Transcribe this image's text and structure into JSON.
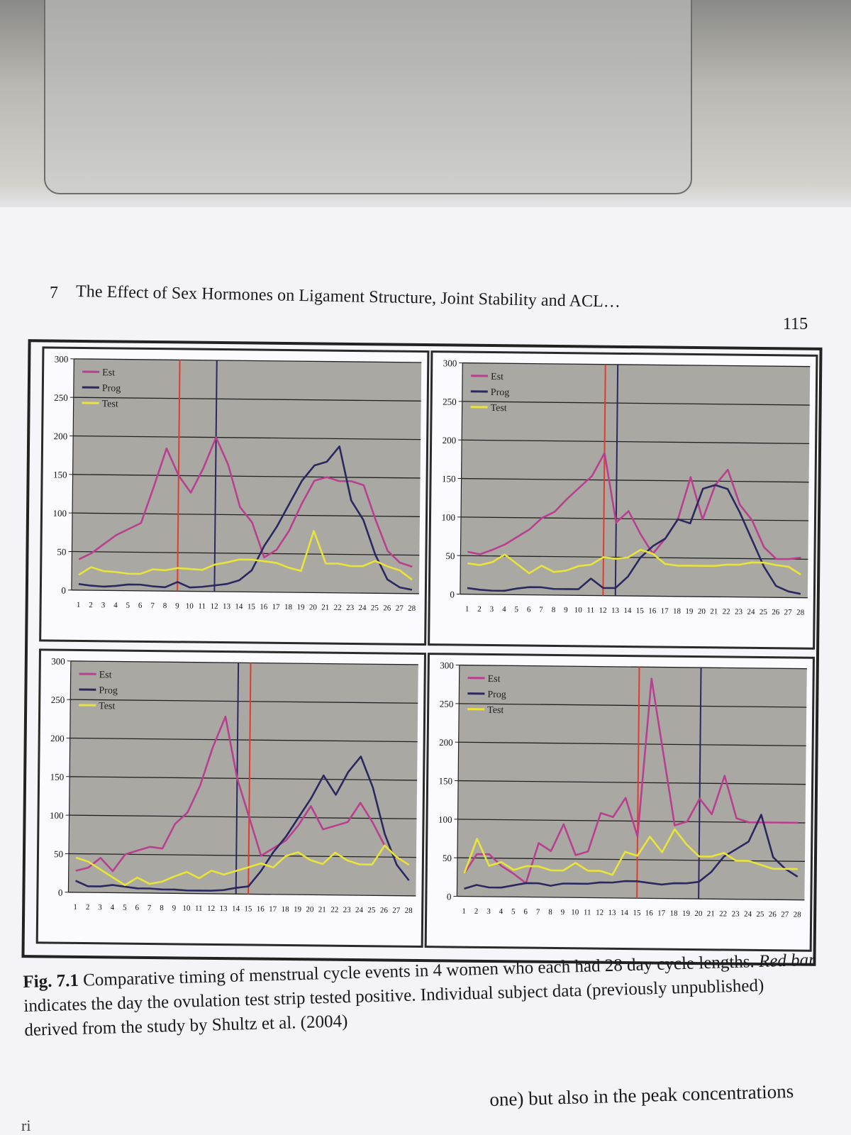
{
  "header": {
    "chapter_number": "7",
    "title": "The Effect of Sex Hormones on Ligament Structure, Joint Stability and ACL…",
    "page_number": "115"
  },
  "caption": {
    "label": "Fig. 7.1",
    "text_1": " Comparative timing of menstrual cycle events in 4 women who each had 28 day cycle lengths. ",
    "italic": "Red bar",
    "text_2": " indicates the day the ovulation test strip tested positive. Individual subject data (previously unpublished) derived from the study by Shultz et al. (2004)"
  },
  "bottom_text": "one) but also in the peak concentrations",
  "bottom_left": "ri",
  "colors": {
    "est": "#b8408f",
    "prog": "#2b2860",
    "test": "#e9e43a",
    "red_bar": "#e03c2c",
    "plot_bg": "#a9a8a3",
    "grid": "#222222"
  },
  "chart_data": [
    {
      "type": "line",
      "x": [
        1,
        2,
        3,
        4,
        5,
        6,
        7,
        8,
        9,
        10,
        11,
        12,
        13,
        14,
        15,
        16,
        17,
        18,
        19,
        20,
        21,
        22,
        23,
        24,
        25,
        26,
        27,
        28
      ],
      "x_tick_labels": [
        "1",
        "2",
        "3",
        "4",
        "5",
        "6",
        "7",
        "8",
        "9",
        "10",
        "11",
        "12",
        "13",
        "14",
        "15",
        "16",
        "17",
        "18",
        "19",
        "20",
        "21",
        "22",
        "23",
        "24",
        "25",
        "26",
        "27",
        "28"
      ],
      "y_ticks": [
        0,
        50,
        100,
        150,
        200,
        250,
        300
      ],
      "ylim": [
        0,
        300
      ],
      "legend": [
        "Est",
        "Prog",
        "Test"
      ],
      "series": [
        {
          "name": "Est",
          "values": [
            40,
            48,
            60,
            72,
            80,
            88,
            135,
            185,
            150,
            128,
            160,
            200,
            165,
            110,
            90,
            45,
            55,
            80,
            115,
            145,
            150,
            145,
            145,
            140,
            95,
            55,
            40,
            35
          ]
        },
        {
          "name": "Prog",
          "values": [
            8,
            6,
            5,
            6,
            8,
            8,
            6,
            5,
            12,
            5,
            6,
            8,
            10,
            15,
            28,
            60,
            85,
            115,
            145,
            165,
            170,
            190,
            120,
            95,
            50,
            18,
            8,
            5
          ]
        },
        {
          "name": "Test",
          "values": [
            20,
            30,
            25,
            24,
            22,
            22,
            28,
            27,
            30,
            29,
            28,
            35,
            38,
            42,
            42,
            40,
            38,
            32,
            28,
            80,
            38,
            38,
            35,
            35,
            42,
            35,
            30,
            18
          ]
        }
      ],
      "red_bar_day": 9,
      "blue_bar_day": 12
    },
    {
      "type": "line",
      "x": [
        1,
        2,
        3,
        4,
        5,
        6,
        7,
        8,
        9,
        10,
        11,
        12,
        13,
        14,
        15,
        16,
        17,
        18,
        19,
        20,
        21,
        22,
        23,
        24,
        25,
        26,
        27,
        28
      ],
      "x_tick_labels": [
        "1",
        "2",
        "3",
        "4",
        "5",
        "6",
        "7",
        "8",
        "9",
        "10",
        "11",
        "12",
        "13",
        "14",
        "15",
        "16",
        "17",
        "18",
        "19",
        "20",
        "21",
        "22",
        "23",
        "24",
        "25",
        "26",
        "27",
        "28"
      ],
      "y_ticks": [
        0,
        50,
        100,
        150,
        200,
        250,
        300
      ],
      "ylim": [
        0,
        300
      ],
      "legend": [
        "Est",
        "Prog",
        "Test"
      ],
      "series": [
        {
          "name": "Est",
          "values": [
            55,
            52,
            58,
            65,
            75,
            85,
            100,
            108,
            125,
            140,
            155,
            185,
            95,
            110,
            80,
            55,
            75,
            100,
            155,
            100,
            145,
            165,
            120,
            100,
            65,
            50,
            50,
            52
          ]
        },
        {
          "name": "Prog",
          "values": [
            8,
            6,
            5,
            5,
            8,
            10,
            10,
            8,
            8,
            8,
            22,
            10,
            10,
            25,
            50,
            65,
            75,
            100,
            95,
            140,
            145,
            140,
            110,
            75,
            40,
            15,
            8,
            5
          ]
        },
        {
          "name": "Test",
          "values": [
            40,
            38,
            42,
            52,
            40,
            28,
            38,
            30,
            32,
            38,
            40,
            50,
            48,
            50,
            60,
            55,
            42,
            40,
            40,
            40,
            40,
            42,
            42,
            45,
            45,
            42,
            40,
            30
          ]
        }
      ],
      "red_bar_day": 12,
      "blue_bar_day": 13
    },
    {
      "type": "line",
      "x": [
        1,
        2,
        3,
        4,
        5,
        6,
        7,
        8,
        9,
        10,
        11,
        12,
        13,
        14,
        15,
        16,
        17,
        18,
        19,
        20,
        21,
        22,
        23,
        24,
        25,
        26,
        27,
        28
      ],
      "x_tick_labels": [
        "1",
        "2",
        "3",
        "4",
        "5",
        "6",
        "7",
        "8",
        "9",
        "10",
        "11",
        "12",
        "13",
        "14",
        "15",
        "16",
        "17",
        "18",
        "19",
        "20",
        "21",
        "22",
        "23",
        "24",
        "25",
        "26",
        "27",
        "28"
      ],
      "y_ticks": [
        0,
        50,
        100,
        150,
        200,
        250,
        300
      ],
      "ylim": [
        0,
        300
      ],
      "legend": [
        "Est",
        "Prog",
        "Test"
      ],
      "series": [
        {
          "name": "Est",
          "values": [
            28,
            32,
            45,
            28,
            50,
            55,
            60,
            58,
            90,
            105,
            140,
            190,
            230,
            150,
            100,
            50,
            60,
            70,
            90,
            115,
            85,
            90,
            95,
            120,
            95,
            65,
            50,
            40
          ]
        },
        {
          "name": "Prog",
          "values": [
            15,
            8,
            8,
            10,
            8,
            6,
            6,
            5,
            5,
            4,
            4,
            4,
            5,
            8,
            10,
            30,
            55,
            75,
            100,
            125,
            155,
            130,
            160,
            180,
            140,
            80,
            40,
            20
          ]
        },
        {
          "name": "Test",
          "values": [
            45,
            40,
            30,
            20,
            10,
            20,
            12,
            15,
            22,
            28,
            20,
            30,
            25,
            30,
            35,
            40,
            35,
            50,
            55,
            45,
            40,
            55,
            45,
            40,
            40,
            65,
            50,
            40
          ]
        }
      ],
      "red_bar_day": 15,
      "blue_bar_day": 14
    },
    {
      "type": "line",
      "x": [
        1,
        2,
        3,
        4,
        5,
        6,
        7,
        8,
        9,
        10,
        11,
        12,
        13,
        14,
        15,
        16,
        17,
        18,
        19,
        20,
        21,
        22,
        23,
        24,
        25,
        26,
        27,
        28
      ],
      "x_tick_labels": [
        "1",
        "2",
        "3",
        "4",
        "5",
        "6",
        "7",
        "8",
        "9",
        "10",
        "11",
        "12",
        "13",
        "14",
        "15",
        "16",
        "17",
        "18",
        "19",
        "20",
        "21",
        "22",
        "23",
        "24",
        "25",
        "26",
        "27",
        "28"
      ],
      "y_ticks": [
        0,
        50,
        100,
        150,
        200,
        250,
        300
      ],
      "ylim": [
        0,
        300
      ],
      "legend": [
        "Est",
        "Prog",
        "Test"
      ],
      "series": [
        {
          "name": "Est",
          "values": [
            30,
            55,
            55,
            40,
            30,
            18,
            70,
            60,
            95,
            55,
            60,
            110,
            105,
            130,
            80,
            285,
            190,
            95,
            100,
            130,
            110,
            160,
            105,
            100,
            100,
            100,
            100,
            100
          ]
        },
        {
          "name": "Prog",
          "values": [
            10,
            15,
            12,
            12,
            15,
            18,
            18,
            15,
            18,
            18,
            18,
            20,
            20,
            22,
            22,
            20,
            18,
            20,
            20,
            22,
            35,
            55,
            65,
            75,
            110,
            55,
            40,
            30
          ]
        },
        {
          "name": "Test",
          "values": [
            30,
            75,
            40,
            45,
            35,
            40,
            40,
            35,
            35,
            45,
            35,
            35,
            30,
            60,
            55,
            80,
            60,
            90,
            70,
            55,
            55,
            60,
            50,
            50,
            45,
            40,
            40,
            40
          ]
        }
      ],
      "red_bar_day": 15,
      "blue_bar_day": 20
    }
  ]
}
